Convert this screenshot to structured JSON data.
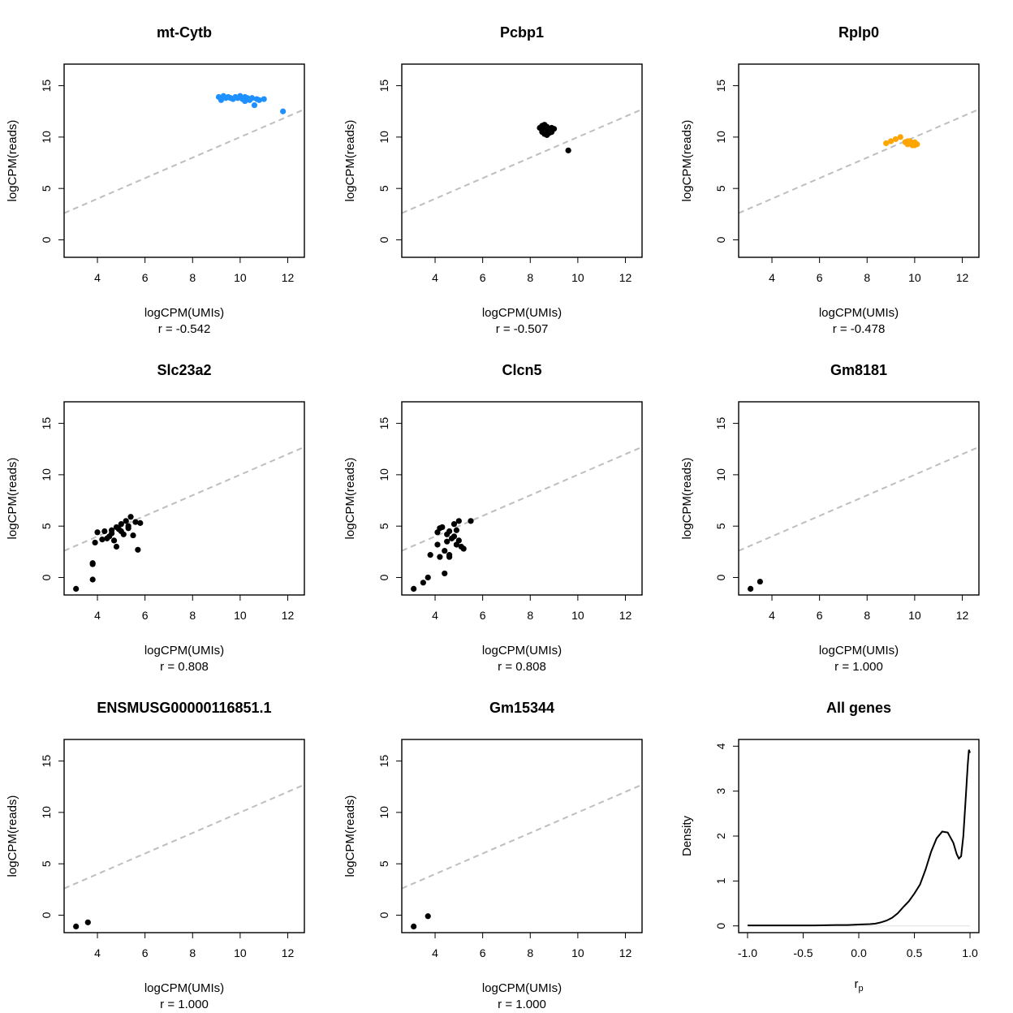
{
  "figure": {
    "background": "#ffffff",
    "ref_line_color": "#bebebe",
    "default_point_color": "#000000"
  },
  "chart_data": [
    {
      "type": "scatter",
      "title": "mt-Cytb",
      "xlabel": "logCPM(UMIs)",
      "ylabel": "logCPM(reads)",
      "annotation": "r = -0.542",
      "xlim": [
        2.6,
        12.7
      ],
      "ylim": [
        -1.7,
        17.1
      ],
      "xticks": [
        4,
        6,
        8,
        10,
        12
      ],
      "yticks": [
        0,
        5,
        10,
        15
      ],
      "ref_line": {
        "slope": 1,
        "intercept": 0
      },
      "point_color": "#1e90ff",
      "points": [
        [
          9.1,
          13.9
        ],
        [
          9.2,
          13.6
        ],
        [
          9.3,
          14.0
        ],
        [
          9.4,
          13.8
        ],
        [
          9.5,
          13.9
        ],
        [
          9.7,
          13.7
        ],
        [
          9.8,
          13.9
        ],
        [
          9.9,
          13.8
        ],
        [
          10.0,
          14.0
        ],
        [
          10.1,
          13.7
        ],
        [
          10.2,
          13.5
        ],
        [
          10.3,
          13.8
        ],
        [
          10.4,
          13.6
        ],
        [
          10.5,
          13.8
        ],
        [
          10.6,
          13.1
        ],
        [
          10.7,
          13.7
        ],
        [
          10.8,
          13.6
        ],
        [
          11.0,
          13.7
        ],
        [
          9.6,
          13.8
        ],
        [
          10.2,
          13.9
        ],
        [
          11.8,
          12.5
        ]
      ]
    },
    {
      "type": "scatter",
      "title": "Pcbp1",
      "xlabel": "logCPM(UMIs)",
      "ylabel": "logCPM(reads)",
      "annotation": "r = -0.507",
      "xlim": [
        2.6,
        12.7
      ],
      "ylim": [
        -1.7,
        17.1
      ],
      "xticks": [
        4,
        6,
        8,
        10,
        12
      ],
      "yticks": [
        0,
        5,
        10,
        15
      ],
      "ref_line": {
        "slope": 1,
        "intercept": 0
      },
      "point_color": "#000000",
      "points": [
        [
          8.4,
          10.9
        ],
        [
          8.5,
          11.1
        ],
        [
          8.5,
          10.5
        ],
        [
          8.6,
          10.8
        ],
        [
          8.6,
          10.3
        ],
        [
          8.7,
          10.6
        ],
        [
          8.7,
          11.0
        ],
        [
          8.8,
          10.4
        ],
        [
          8.8,
          10.7
        ],
        [
          8.9,
          10.9
        ],
        [
          8.5,
          10.6
        ],
        [
          8.7,
          10.2
        ],
        [
          8.9,
          10.5
        ],
        [
          9.0,
          10.8
        ],
        [
          8.6,
          11.2
        ],
        [
          9.6,
          8.7
        ]
      ]
    },
    {
      "type": "scatter",
      "title": "Rplp0",
      "xlabel": "logCPM(UMIs)",
      "ylabel": "logCPM(reads)",
      "annotation": "r = -0.478",
      "xlim": [
        2.6,
        12.7
      ],
      "ylim": [
        -1.7,
        17.1
      ],
      "xticks": [
        4,
        6,
        8,
        10,
        12
      ],
      "yticks": [
        0,
        5,
        10,
        15
      ],
      "ref_line": {
        "slope": 1,
        "intercept": 0
      },
      "point_color": "#ffa500",
      "points": [
        [
          8.8,
          9.4
        ],
        [
          9.0,
          9.6
        ],
        [
          9.2,
          9.8
        ],
        [
          9.4,
          10.0
        ],
        [
          9.6,
          9.5
        ],
        [
          9.7,
          9.3
        ],
        [
          9.8,
          9.4
        ],
        [
          9.9,
          9.2
        ],
        [
          10.0,
          9.5
        ],
        [
          10.1,
          9.3
        ],
        [
          9.8,
          9.6
        ],
        [
          10.0,
          9.2
        ],
        [
          9.9,
          9.4
        ],
        [
          9.7,
          9.6
        ]
      ]
    },
    {
      "type": "scatter",
      "title": "Slc23a2",
      "xlabel": "logCPM(UMIs)",
      "ylabel": "logCPM(reads)",
      "annotation": "r = 0.808",
      "xlim": [
        2.6,
        12.7
      ],
      "ylim": [
        -1.7,
        17.1
      ],
      "xticks": [
        4,
        6,
        8,
        10,
        12
      ],
      "yticks": [
        0,
        5,
        10,
        15
      ],
      "ref_line": {
        "slope": 1,
        "intercept": 0
      },
      "point_color": "#000000",
      "points": [
        [
          3.1,
          -1.1
        ],
        [
          3.8,
          -0.2
        ],
        [
          3.8,
          1.3
        ],
        [
          3.9,
          3.4
        ],
        [
          4.0,
          4.4
        ],
        [
          4.2,
          3.7
        ],
        [
          4.3,
          4.5
        ],
        [
          4.4,
          3.8
        ],
        [
          4.5,
          4.0
        ],
        [
          4.6,
          4.3
        ],
        [
          4.7,
          3.6
        ],
        [
          4.8,
          4.9
        ],
        [
          4.8,
          3.0
        ],
        [
          4.9,
          4.7
        ],
        [
          5.0,
          5.2
        ],
        [
          5.1,
          4.2
        ],
        [
          5.2,
          5.5
        ],
        [
          5.3,
          4.8
        ],
        [
          5.4,
          5.9
        ],
        [
          5.5,
          4.1
        ],
        [
          5.6,
          5.4
        ],
        [
          5.7,
          2.7
        ],
        [
          5.8,
          5.3
        ],
        [
          4.6,
          4.6
        ],
        [
          5.0,
          4.5
        ],
        [
          5.3,
          5.0
        ],
        [
          3.8,
          1.4
        ]
      ]
    },
    {
      "type": "scatter",
      "title": "Clcn5",
      "xlabel": "logCPM(UMIs)",
      "ylabel": "logCPM(reads)",
      "annotation": "r = 0.808",
      "xlim": [
        2.6,
        12.7
      ],
      "ylim": [
        -1.7,
        17.1
      ],
      "xticks": [
        4,
        6,
        8,
        10,
        12
      ],
      "yticks": [
        0,
        5,
        10,
        15
      ],
      "ref_line": {
        "slope": 1,
        "intercept": 0
      },
      "point_color": "#000000",
      "points": [
        [
          3.1,
          -1.1
        ],
        [
          3.5,
          -0.5
        ],
        [
          3.7,
          0.0
        ],
        [
          3.8,
          2.2
        ],
        [
          4.1,
          3.2
        ],
        [
          4.1,
          4.4
        ],
        [
          4.2,
          2.0
        ],
        [
          4.2,
          4.8
        ],
        [
          4.4,
          2.6
        ],
        [
          4.4,
          0.4
        ],
        [
          4.5,
          3.5
        ],
        [
          4.5,
          4.2
        ],
        [
          4.6,
          2.2
        ],
        [
          4.6,
          4.5
        ],
        [
          4.7,
          3.8
        ],
        [
          4.8,
          5.2
        ],
        [
          4.8,
          4.0
        ],
        [
          4.9,
          3.2
        ],
        [
          5.0,
          5.5
        ],
        [
          5.0,
          3.6
        ],
        [
          5.1,
          3.0
        ],
        [
          5.2,
          2.8
        ],
        [
          5.5,
          5.5
        ],
        [
          4.6,
          2.0
        ],
        [
          4.3,
          4.9
        ],
        [
          4.9,
          4.6
        ]
      ]
    },
    {
      "type": "scatter",
      "title": "Gm8181",
      "xlabel": "logCPM(UMIs)",
      "ylabel": "logCPM(reads)",
      "annotation": "r = 1.000",
      "xlim": [
        2.6,
        12.7
      ],
      "ylim": [
        -1.7,
        17.1
      ],
      "xticks": [
        4,
        6,
        8,
        10,
        12
      ],
      "yticks": [
        0,
        5,
        10,
        15
      ],
      "ref_line": {
        "slope": 1,
        "intercept": 0
      },
      "point_color": "#000000",
      "points": [
        [
          3.1,
          -1.1
        ],
        [
          3.5,
          -0.4
        ]
      ]
    },
    {
      "type": "scatter",
      "title": "ENSMUSG00000116851.1",
      "xlabel": "logCPM(UMIs)",
      "ylabel": "logCPM(reads)",
      "annotation": "r = 1.000",
      "xlim": [
        2.6,
        12.7
      ],
      "ylim": [
        -1.7,
        17.1
      ],
      "xticks": [
        4,
        6,
        8,
        10,
        12
      ],
      "yticks": [
        0,
        5,
        10,
        15
      ],
      "ref_line": {
        "slope": 1,
        "intercept": 0
      },
      "point_color": "#000000",
      "points": [
        [
          3.1,
          -1.1
        ],
        [
          3.6,
          -0.7
        ]
      ]
    },
    {
      "type": "scatter",
      "title": "Gm15344",
      "xlabel": "logCPM(UMIs)",
      "ylabel": "logCPM(reads)",
      "annotation": "r = 1.000",
      "xlim": [
        2.6,
        12.7
      ],
      "ylim": [
        -1.7,
        17.1
      ],
      "xticks": [
        4,
        6,
        8,
        10,
        12
      ],
      "yticks": [
        0,
        5,
        10,
        15
      ],
      "ref_line": {
        "slope": 1,
        "intercept": 0
      },
      "point_color": "#000000",
      "points": [
        [
          3.1,
          -1.1
        ],
        [
          3.7,
          -0.1
        ]
      ]
    },
    {
      "type": "line",
      "title": "All genes",
      "xlabel": "r",
      "xlabel_subscript": "p",
      "ylabel": "Density",
      "annotation": "",
      "xlim": [
        -1.08,
        1.08
      ],
      "ylim": [
        -0.15,
        4.15
      ],
      "xticks": [
        -1.0,
        -0.5,
        0.0,
        0.5,
        1.0
      ],
      "xtick_labels": [
        "-1.0",
        "-0.5",
        "0.0",
        "0.5",
        "1.0"
      ],
      "yticks": [
        0,
        1,
        2,
        3,
        4
      ],
      "baseline": 0,
      "line_color": "#000000",
      "points": [
        [
          -1.0,
          0.01
        ],
        [
          -0.8,
          0.01
        ],
        [
          -0.6,
          0.01
        ],
        [
          -0.4,
          0.01
        ],
        [
          -0.2,
          0.02
        ],
        [
          -0.1,
          0.02
        ],
        [
          0.0,
          0.03
        ],
        [
          0.1,
          0.04
        ],
        [
          0.15,
          0.05
        ],
        [
          0.2,
          0.08
        ],
        [
          0.25,
          0.12
        ],
        [
          0.3,
          0.18
        ],
        [
          0.35,
          0.28
        ],
        [
          0.4,
          0.42
        ],
        [
          0.45,
          0.55
        ],
        [
          0.5,
          0.72
        ],
        [
          0.55,
          0.92
        ],
        [
          0.6,
          1.25
        ],
        [
          0.65,
          1.65
        ],
        [
          0.7,
          1.95
        ],
        [
          0.75,
          2.1
        ],
        [
          0.8,
          2.08
        ],
        [
          0.85,
          1.85
        ],
        [
          0.88,
          1.6
        ],
        [
          0.9,
          1.5
        ],
        [
          0.92,
          1.55
        ],
        [
          0.94,
          2.0
        ],
        [
          0.96,
          2.8
        ],
        [
          0.98,
          3.6
        ],
        [
          0.99,
          3.92
        ],
        [
          1.0,
          3.85
        ]
      ]
    }
  ]
}
